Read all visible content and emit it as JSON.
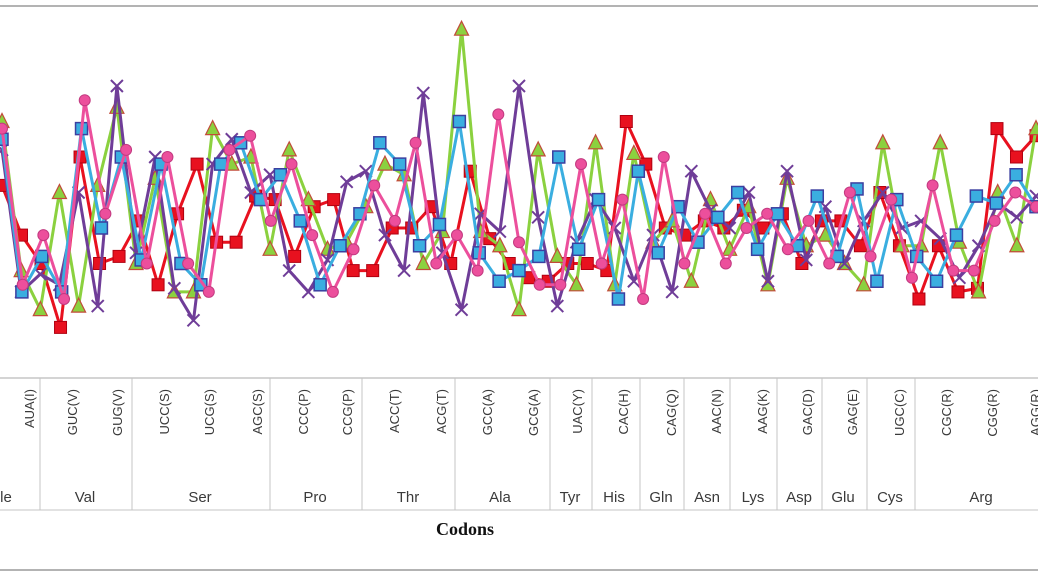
{
  "chart_data": {
    "type": "line",
    "title": "",
    "xlabel": "Codons",
    "ylabel": "",
    "ylim": [
      0,
      100
    ],
    "grid": false,
    "legend": "none",
    "codon_ticks": [
      "AUA(I)",
      "GUC(V)",
      "GUG(V)",
      "UCC(S)",
      "UCG(S)",
      "AGC(S)",
      "CCC(P)",
      "CCG(P)",
      "ACC(T)",
      "ACG(T)",
      "GCC(A)",
      "GCG(A)",
      "UAC(Y)",
      "CAC(H)",
      "CAG(Q)",
      "AAC(N)",
      "AAG(K)",
      "GAC(D)",
      "GAG(E)",
      "UGC(C)",
      "CGC(R)",
      "CGG(R)",
      "AGG(R)"
    ],
    "amino_acids": [
      "le",
      "Val",
      "Ser",
      "Pro",
      "Thr",
      "Ala",
      "Tyr",
      "His",
      "Gln",
      "Asn",
      "Lys",
      "Asp",
      "Glu",
      "Cys",
      "Arg"
    ],
    "series": [
      {
        "color": "#e8111f",
        "marker": "square",
        "values": [
          52,
          38,
          30,
          12,
          60,
          30,
          32,
          42,
          24,
          44,
          58,
          36,
          36,
          49,
          48,
          32,
          46,
          48,
          28,
          28,
          40,
          40,
          46,
          30,
          56,
          37,
          30,
          26,
          25,
          30,
          30,
          28,
          70,
          58,
          40,
          38,
          42,
          40,
          45,
          40,
          44,
          30,
          42,
          42,
          35,
          50,
          35,
          20,
          35,
          22,
          23,
          68,
          60,
          66
        ]
      },
      {
        "color": "#8bd13f",
        "marker": "triangle",
        "values": [
          70,
          28,
          17,
          50,
          18,
          52,
          74,
          30,
          54,
          22,
          22,
          68,
          58,
          60,
          34,
          62,
          48,
          34,
          36,
          46,
          58,
          55,
          30,
          39,
          96,
          39,
          35,
          17,
          62,
          32,
          24,
          64,
          24,
          61,
          36,
          42,
          25,
          48,
          34,
          46,
          24,
          54,
          35,
          38,
          30,
          24,
          64,
          35,
          35,
          64,
          36,
          22,
          50,
          35,
          68
        ]
      },
      {
        "color": "#6f3d98",
        "marker": "x",
        "values": [
          62,
          22,
          27,
          24,
          50,
          18,
          80,
          33,
          60,
          23,
          14,
          58,
          65,
          50,
          55,
          28,
          22,
          31,
          53,
          56,
          38,
          28,
          78,
          33,
          17,
          44,
          39,
          80,
          43,
          18,
          36,
          48,
          40,
          25,
          38,
          22,
          56,
          45,
          40,
          50,
          25,
          56,
          31,
          46,
          30,
          42,
          50,
          40,
          42,
          37,
          26,
          35,
          47,
          43,
          49
        ]
      },
      {
        "color": "#3aaee0",
        "marker": "circle",
        "values": [
          65,
          22,
          32,
          22,
          68,
          40,
          60,
          31,
          58,
          30,
          24,
          58,
          64,
          48,
          55,
          42,
          24,
          35,
          44,
          64,
          58,
          35,
          41,
          70,
          33,
          25,
          28,
          32,
          60,
          34,
          48,
          20,
          56,
          33,
          46,
          36,
          43,
          50,
          34,
          44,
          35,
          49,
          32,
          51,
          25,
          48,
          32,
          25,
          38,
          49,
          47,
          55,
          46
        ]
      },
      {
        "color": "#ec4f9c",
        "marker": "circle",
        "values": [
          68,
          24,
          38,
          20,
          76,
          44,
          62,
          30,
          60,
          30,
          22,
          62,
          66,
          42,
          58,
          38,
          22,
          34,
          52,
          42,
          64,
          30,
          38,
          28,
          72,
          36,
          24,
          24,
          58,
          30,
          48,
          20,
          60,
          30,
          44,
          30,
          40,
          44,
          34,
          42,
          30,
          50,
          32,
          48,
          26,
          52,
          28,
          28,
          42,
          50,
          46
        ]
      }
    ]
  }
}
